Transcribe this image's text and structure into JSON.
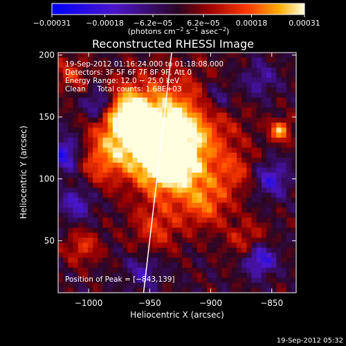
{
  "chart_data": {
    "type": "heatmap",
    "title": "Reconstructed RHESSI Image",
    "xlabel": "Heliocentric X (arcsec)",
    "ylabel": "Heliocentric Y (arcsec)",
    "xlim": [
      -1025,
      -830
    ],
    "ylim": [
      8,
      202
    ],
    "x_ticks": [
      -1000,
      -950,
      -900,
      -850
    ],
    "x_tick_labels": [
      "−1000",
      "−950",
      "−900",
      "−850"
    ],
    "y_ticks": [
      50,
      100,
      150,
      200
    ],
    "y_tick_labels": [
      "50",
      "100",
      "150",
      "200"
    ],
    "colorbar": {
      "range": [
        -0.00031,
        0.00031
      ],
      "ticks": [
        -0.00031,
        -0.00018,
        -6.2e-05,
        6.2e-05,
        0.00018,
        0.00031
      ],
      "tick_labels": [
        "−0.00031",
        "−0.00018",
        "−6.2e−05",
        "6.2e−05",
        "0.00018",
        "0.00031"
      ],
      "unit_main": "(photons cm",
      "unit_exp1": "−2",
      "unit_mid": " s",
      "unit_exp2": "−1",
      "unit_tail": " asec",
      "unit_exp3": "−2",
      "unit_close": ")"
    },
    "annotations": [
      "19-Sep-2012 01:16:24.000 to 01:18:08.000",
      "Detectors: 3F 5F 6F 7F 8F 9F, Att 0",
      "Energy Range: 12.0 − 25.0 keV",
      "Clean     Total counts: 1.68E+03"
    ],
    "peak_label": "Position of Peak = [−843,139]",
    "peak_position": [
      -843,
      139
    ],
    "limb_line": [
      [
        -955,
        8
      ],
      [
        -932,
        202
      ]
    ],
    "sources": [
      {
        "x": -930,
        "y": 135,
        "v": 0.00031,
        "s": 30
      },
      {
        "x": -935,
        "y": 112,
        "v": 0.00026,
        "s": 16
      },
      {
        "x": -960,
        "y": 140,
        "v": 0.00022,
        "s": 18
      },
      {
        "x": -975,
        "y": 155,
        "v": 0.00018,
        "s": 14
      },
      {
        "x": -843,
        "y": 139,
        "v": 0.00025,
        "s": 6
      },
      {
        "x": -990,
        "y": 115,
        "v": 0.00015,
        "s": 14
      },
      {
        "x": -1005,
        "y": 45,
        "v": 0.00014,
        "s": 10
      },
      {
        "x": -905,
        "y": 80,
        "v": 0.00016,
        "s": 14
      },
      {
        "x": -945,
        "y": 60,
        "v": 0.00013,
        "s": 14
      },
      {
        "x": -870,
        "y": 50,
        "v": 0.00012,
        "s": 12
      },
      {
        "x": -1015,
        "y": 185,
        "v": 0.00012,
        "s": 10
      },
      {
        "x": -880,
        "y": 105,
        "v": 0.0001,
        "s": 12
      },
      {
        "x": -990,
        "y": 160,
        "v": -0.00025,
        "s": 9
      },
      {
        "x": -1020,
        "y": 120,
        "v": -0.00022,
        "s": 10
      },
      {
        "x": -860,
        "y": 35,
        "v": -0.00024,
        "s": 9
      },
      {
        "x": -850,
        "y": 100,
        "v": -0.00018,
        "s": 10
      },
      {
        "x": -1010,
        "y": 80,
        "v": -0.00015,
        "s": 10
      },
      {
        "x": -895,
        "y": 165,
        "v": -0.00014,
        "s": 10
      },
      {
        "x": -955,
        "y": 25,
        "v": -0.00012,
        "s": 10
      },
      {
        "x": -860,
        "y": 180,
        "v": -0.00012,
        "s": 10
      }
    ]
  },
  "footer_timestamp": "19-Sep-2012 05:32"
}
